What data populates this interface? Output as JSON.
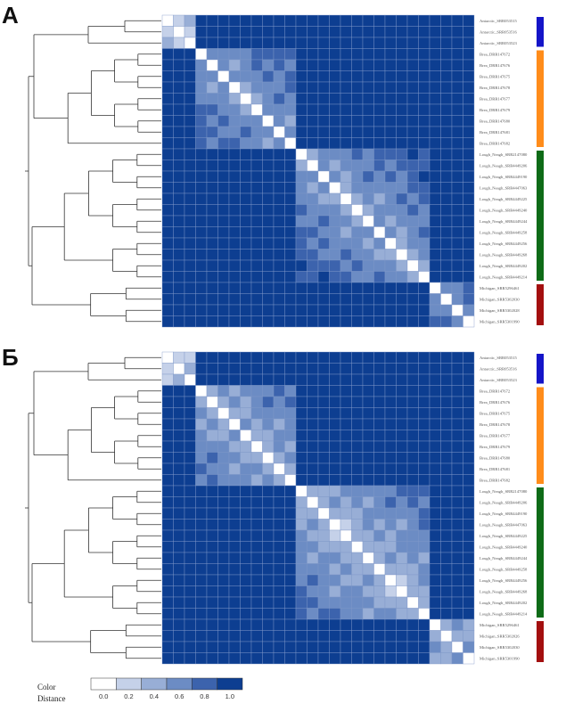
{
  "chart_data": [
    {
      "type": "heatmap",
      "panel_label": "А",
      "rows": [
        "Antarctic_SRR053515",
        "Antarctic_SRR053516",
        "Antarctic_SRR053523",
        "Brea_DRR147672",
        "Brea_DRR147676",
        "Brea_DRR147675",
        "Brea_DRR147678",
        "Brea_DRR147677",
        "Brea_DRR147679",
        "Brea_DRR147680",
        "Brea_DRR147681",
        "Brea_DRR147682",
        "Lough_Neagh_SRR2147080",
        "Lough_Neagh_SRR4449206",
        "Lough_Neagh_SRR4449190",
        "Lough_Neagh_SRR4447063",
        "Lough_Neagh_SRR4449225",
        "Lough_Neagh_SRR4449240",
        "Lough_Neagh_SRR4449244",
        "Lough_Neagh_SRR4449258",
        "Lough_Neagh_SRR4449256",
        "Lough_Neagh_SRR4449268",
        "Lough_Neagh_SRR4449202",
        "Lough_Neagh_SRR4449214",
        "Michigan_SRR5296461",
        "Michigan_SRR5302030",
        "Michigan_SRR5302028",
        "Michigan_SRR5301990"
      ],
      "groups": [
        {
          "name": "Antarctic",
          "start": 0,
          "end": 2,
          "color": "#1414c8"
        },
        {
          "name": "Brea",
          "start": 3,
          "end": 11,
          "color": "#ff8c1a"
        },
        {
          "name": "Lough_Neagh",
          "start": 12,
          "end": 23,
          "color": "#0e6b17"
        },
        {
          "name": "Michigan",
          "start": 24,
          "end": 27,
          "color": "#a30f0f"
        }
      ],
      "intra_group_distance": {
        "Antarctic": 0.2,
        "Brea": 0.5,
        "Lough_Neagh": 0.45,
        "Michigan": 0.6
      },
      "inter_group_distance": 1.0
    },
    {
      "type": "heatmap",
      "panel_label": "Б",
      "rows": [
        "Antarctic_SRR053515",
        "Antarctic_SRR053516",
        "Antarctic_SRR053523",
        "Brea_DRR147672",
        "Brea_DRR147676",
        "Brea_DRR147675",
        "Brea_DRR147678",
        "Brea_DRR147677",
        "Brea_DRR147679",
        "Brea_DRR147680",
        "Brea_DRR147681",
        "Brea_DRR147682",
        "Lough_Neagh_SRR2147080",
        "Lough_Neagh_SRR4449206",
        "Lough_Neagh_SRR4449190",
        "Lough_Neagh_SRR4447063",
        "Lough_Neagh_SRR4449225",
        "Lough_Neagh_SRR4449240",
        "Lough_Neagh_SRR4449244",
        "Lough_Neagh_SRR4449258",
        "Lough_Neagh_SRR4449256",
        "Lough_Neagh_SRR4449268",
        "Lough_Neagh_SRR4449202",
        "Lough_Neagh_SRR4449214",
        "Michigan_SRR5296461",
        "Michigan_SRR5302026",
        "Michigan_SRR5302030",
        "Michigan_SRR5301990"
      ],
      "groups": [
        {
          "name": "Antarctic",
          "start": 0,
          "end": 2,
          "color": "#1414c8"
        },
        {
          "name": "Brea",
          "start": 3,
          "end": 11,
          "color": "#ff8c1a"
        },
        {
          "name": "Lough_Neagh",
          "start": 12,
          "end": 23,
          "color": "#0e6b17"
        },
        {
          "name": "Michigan",
          "start": 24,
          "end": 27,
          "color": "#a30f0f"
        }
      ],
      "intra_group_distance": {
        "Antarctic": 0.2,
        "Brea": 0.4,
        "Lough_Neagh": 0.35,
        "Michigan": 0.4
      },
      "inter_group_distance": 1.0
    }
  ],
  "legend": {
    "title_line1": "Color",
    "title_line2": "Distance",
    "ticks": [
      "0.0",
      "0.2",
      "0.4",
      "0.6",
      "0.8",
      "1.0"
    ],
    "colors": [
      "#ffffff",
      "#c5d1e9",
      "#98aed6",
      "#6c8cc4",
      "#3c63ad",
      "#0d3e91"
    ]
  }
}
